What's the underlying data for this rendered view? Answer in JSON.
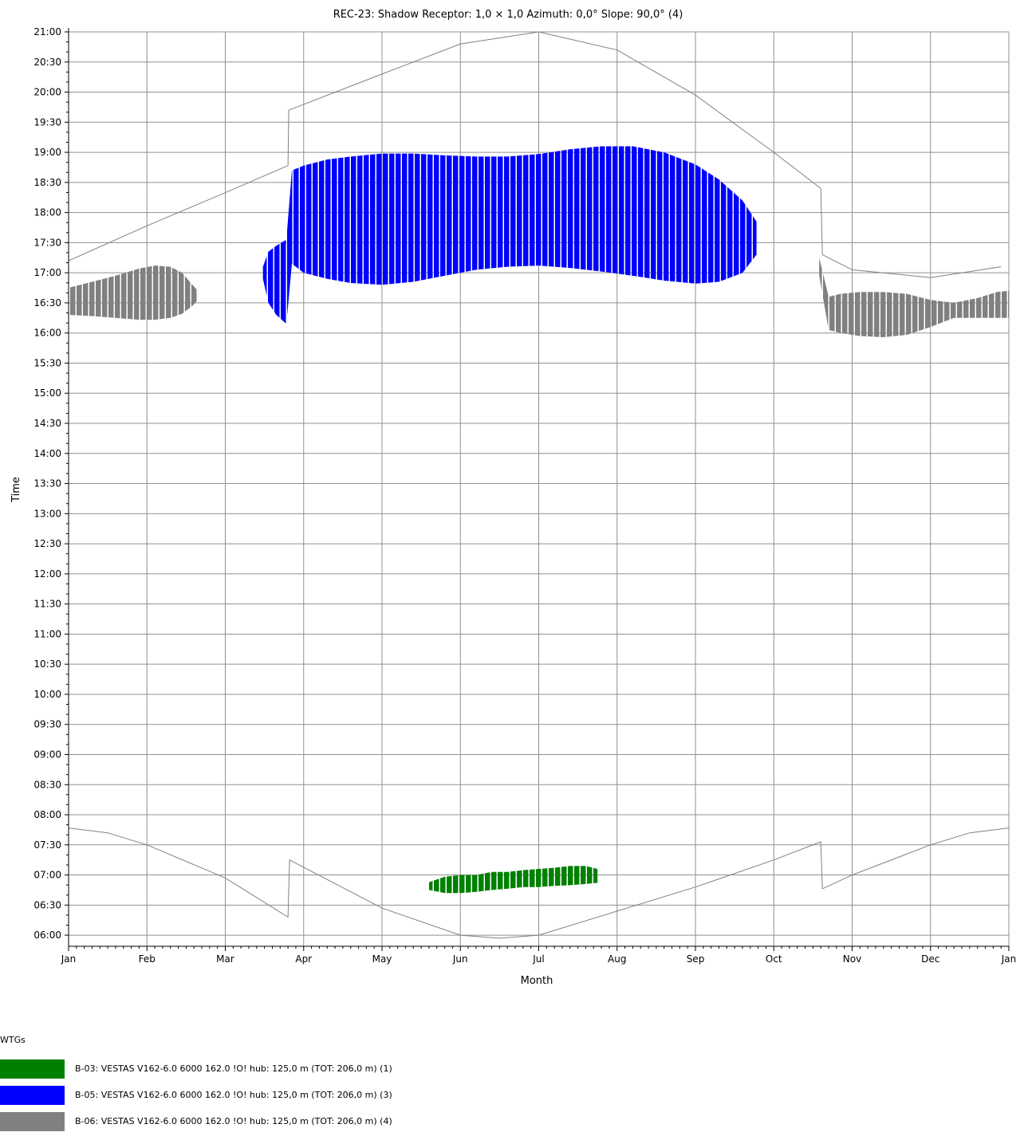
{
  "chart_data": {
    "type": "scatter",
    "title": "REC-23: Shadow Receptor: 1,0 × 1,0  Azimuth: 0,0°  Slope: 90,0° (4)",
    "xlabel": "Month",
    "ylabel": "Time",
    "x_tick_labels": [
      "Jan",
      "Feb",
      "Mar",
      "Apr",
      "May",
      "Jun",
      "Jul",
      "Aug",
      "Sep",
      "Oct",
      "Nov",
      "Dec",
      "Jan"
    ],
    "y_tick_labels": [
      "21:00",
      "20:30",
      "20:00",
      "19:30",
      "19:00",
      "18:30",
      "18:00",
      "17:30",
      "17:00",
      "16:30",
      "16:00",
      "15:30",
      "15:00",
      "14:30",
      "14:00",
      "13:30",
      "13:00",
      "12:30",
      "12:00",
      "11:30",
      "11:00",
      "10:30",
      "10:00",
      "09:30",
      "09:00",
      "08:30",
      "08:00",
      "07:30",
      "07:00",
      "06:30",
      "06:00"
    ],
    "xlim_month": [
      0,
      12
    ],
    "ylim_hours": [
      5.87,
      21.0
    ],
    "grid": true,
    "sunset_curve": {
      "name": "",
      "points": [
        [
          0.0,
          17.2
        ],
        [
          1.0,
          17.78
        ],
        [
          2.0,
          18.33
        ],
        [
          2.8,
          18.78
        ],
        [
          2.81,
          19.7
        ],
        [
          4.0,
          20.3
        ],
        [
          5.0,
          20.8
        ],
        [
          6.0,
          21.0
        ],
        [
          7.0,
          20.7
        ],
        [
          8.0,
          19.95
        ],
        [
          9.0,
          19.0
        ],
        [
          9.6,
          18.4
        ],
        [
          9.62,
          17.3
        ],
        [
          10.0,
          17.05
        ],
        [
          11.0,
          16.92
        ],
        [
          11.9,
          17.1
        ]
      ]
    },
    "sunrise_curve": {
      "name": "",
      "points": [
        [
          0.0,
          7.78
        ],
        [
          0.5,
          7.7
        ],
        [
          1.0,
          7.5
        ],
        [
          2.0,
          6.95
        ],
        [
          2.8,
          6.3
        ],
        [
          2.82,
          7.25
        ],
        [
          4.0,
          6.45
        ],
        [
          5.0,
          6.0
        ],
        [
          5.5,
          5.95
        ],
        [
          6.0,
          6.0
        ],
        [
          7.0,
          6.4
        ],
        [
          8.0,
          6.8
        ],
        [
          9.0,
          7.25
        ],
        [
          9.6,
          7.55
        ],
        [
          9.62,
          6.77
        ],
        [
          10.0,
          7.0
        ],
        [
          11.0,
          7.5
        ],
        [
          11.5,
          7.7
        ],
        [
          12.0,
          7.78
        ]
      ]
    },
    "series": [
      {
        "name": "B-03: VESTAS V162-6.0 6000 162.0 !O! hub: 125,0 m (TOT: 206,0 m) (1)",
        "color": "#008000",
        "bands": [
          {
            "x": 4.6,
            "y0": 6.75,
            "y1": 6.88
          },
          {
            "x": 4.8,
            "y0": 6.7,
            "y1": 6.97
          },
          {
            "x": 5.0,
            "y0": 6.7,
            "y1": 7.0
          },
          {
            "x": 5.2,
            "y0": 6.72,
            "y1": 7.0
          },
          {
            "x": 5.4,
            "y0": 6.75,
            "y1": 7.05
          },
          {
            "x": 5.6,
            "y0": 6.77,
            "y1": 7.05
          },
          {
            "x": 5.8,
            "y0": 6.8,
            "y1": 7.08
          },
          {
            "x": 6.0,
            "y0": 6.8,
            "y1": 7.1
          },
          {
            "x": 6.2,
            "y0": 6.82,
            "y1": 7.12
          },
          {
            "x": 6.4,
            "y0": 6.83,
            "y1": 7.15
          },
          {
            "x": 6.6,
            "y0": 6.85,
            "y1": 7.15
          },
          {
            "x": 6.75,
            "y0": 6.87,
            "y1": 7.1
          }
        ]
      },
      {
        "name": "B-05: VESTAS V162-6.0 6000 162.0 !O! hub: 125,0 m (TOT: 206,0 m) (3)",
        "color": "#0000ff",
        "bands": [
          {
            "x": 2.48,
            "y0": 16.9,
            "y1": 17.1
          },
          {
            "x": 2.55,
            "y0": 16.5,
            "y1": 17.35
          },
          {
            "x": 2.65,
            "y0": 16.3,
            "y1": 17.45
          },
          {
            "x": 2.78,
            "y0": 16.15,
            "y1": 17.55
          },
          {
            "x": 2.85,
            "y0": 17.15,
            "y1": 18.7
          },
          {
            "x": 3.0,
            "y0": 17.0,
            "y1": 18.78
          },
          {
            "x": 3.3,
            "y0": 16.9,
            "y1": 18.88
          },
          {
            "x": 3.6,
            "y0": 16.83,
            "y1": 18.93
          },
          {
            "x": 4.0,
            "y0": 16.8,
            "y1": 18.98
          },
          {
            "x": 4.4,
            "y0": 16.85,
            "y1": 18.98
          },
          {
            "x": 4.8,
            "y0": 16.95,
            "y1": 18.95
          },
          {
            "x": 5.2,
            "y0": 17.05,
            "y1": 18.93
          },
          {
            "x": 5.6,
            "y0": 17.1,
            "y1": 18.93
          },
          {
            "x": 6.0,
            "y0": 17.12,
            "y1": 18.97
          },
          {
            "x": 6.4,
            "y0": 17.08,
            "y1": 19.05
          },
          {
            "x": 6.8,
            "y0": 17.02,
            "y1": 19.1
          },
          {
            "x": 7.2,
            "y0": 16.95,
            "y1": 19.1
          },
          {
            "x": 7.6,
            "y0": 16.87,
            "y1": 19.0
          },
          {
            "x": 8.0,
            "y0": 16.82,
            "y1": 18.8
          },
          {
            "x": 8.3,
            "y0": 16.85,
            "y1": 18.55
          },
          {
            "x": 8.6,
            "y0": 17.0,
            "y1": 18.2
          },
          {
            "x": 8.78,
            "y0": 17.3,
            "y1": 17.85
          }
        ]
      },
      {
        "name": "B-06: VESTAS V162-6.0 6000 162.0 !O! hub: 125,0 m (TOT: 206,0 m) (4)",
        "color": "#808080",
        "bands": [
          {
            "x": 0.0,
            "y0": 16.3,
            "y1": 16.75
          },
          {
            "x": 0.3,
            "y0": 16.28,
            "y1": 16.85
          },
          {
            "x": 0.6,
            "y0": 16.25,
            "y1": 16.95
          },
          {
            "x": 0.9,
            "y0": 16.22,
            "y1": 17.07
          },
          {
            "x": 1.1,
            "y0": 16.22,
            "y1": 17.12
          },
          {
            "x": 1.3,
            "y0": 16.25,
            "y1": 17.1
          },
          {
            "x": 1.45,
            "y0": 16.32,
            "y1": 17.0
          },
          {
            "x": 1.58,
            "y0": 16.45,
            "y1": 16.8
          },
          {
            "x": 1.65,
            "y0": 16.55,
            "y1": 16.7
          },
          {
            "x": 9.58,
            "y0": 16.95,
            "y1": 17.25
          },
          {
            "x": 9.7,
            "y0": 16.05,
            "y1": 16.6
          },
          {
            "x": 9.85,
            "y0": 16.0,
            "y1": 16.65
          },
          {
            "x": 10.1,
            "y0": 15.95,
            "y1": 16.68
          },
          {
            "x": 10.4,
            "y0": 15.93,
            "y1": 16.68
          },
          {
            "x": 10.7,
            "y0": 15.97,
            "y1": 16.65
          },
          {
            "x": 11.0,
            "y0": 16.1,
            "y1": 16.55
          },
          {
            "x": 11.3,
            "y0": 16.25,
            "y1": 16.5
          },
          {
            "x": 11.6,
            "y0": 16.25,
            "y1": 16.58
          },
          {
            "x": 11.85,
            "y0": 16.25,
            "y1": 16.68
          },
          {
            "x": 12.0,
            "y0": 16.25,
            "y1": 16.7
          }
        ]
      }
    ]
  },
  "legend": {
    "title": "WTGs",
    "items": [
      {
        "label": "B-03: VESTAS V162-6.0 6000 162.0 !O! hub: 125,0 m (TOT: 206,0 m) (1)",
        "color": "#008000"
      },
      {
        "label": "B-05: VESTAS V162-6.0 6000 162.0 !O! hub: 125,0 m (TOT: 206,0 m) (3)",
        "color": "#0000ff"
      },
      {
        "label": "B-06: VESTAS V162-6.0 6000 162.0 !O! hub: 125,0 m (TOT: 206,0 m) (4)",
        "color": "#808080"
      }
    ]
  }
}
